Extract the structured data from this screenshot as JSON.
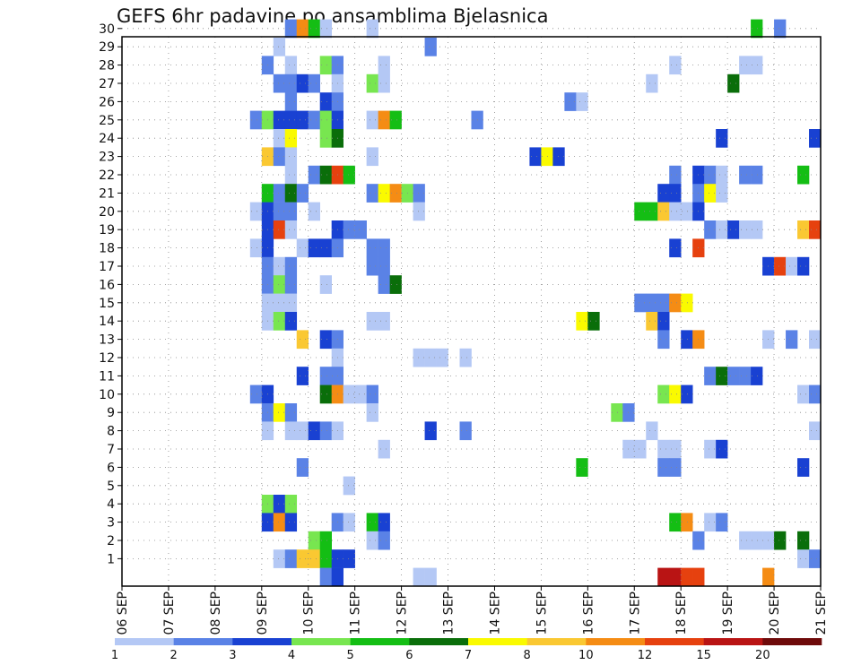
{
  "chart_data": {
    "type": "heatmap",
    "title": "GEFS 6hr padavine po ansamblima Bjelasnica",
    "x_ticks": [
      "06 SEP",
      "07 SEP",
      "08 SEP",
      "09 SEP",
      "10 SEP",
      "11 SEP",
      "12 SEP",
      "13 SEP",
      "14 SEP",
      "15 SEP",
      "16 SEP",
      "17 SEP",
      "18 SEP",
      "19 SEP",
      "20 SEP",
      "21 SEP"
    ],
    "y_ticks": [
      "1",
      "2",
      "3",
      "4",
      "5",
      "6",
      "7",
      "8",
      "9",
      "10",
      "11",
      "12",
      "13",
      "14",
      "15",
      "16",
      "17",
      "18",
      "19",
      "20",
      "21",
      "22",
      "23",
      "24",
      "25",
      "26",
      "27",
      "28",
      "29",
      "30"
    ],
    "x_unit": "6-hour step starting 06 SEP 00Z (index 0..59)",
    "y_range": [
      1,
      30
    ],
    "grid": true,
    "colorbar": {
      "levels": [
        "1",
        "2",
        "3",
        "4",
        "5",
        "6",
        "7",
        "8",
        "10",
        "12",
        "15",
        "20"
      ],
      "colors": [
        "#b4c8f5",
        "#5a82e6",
        "#1941d2",
        "#78e650",
        "#14be14",
        "#0a6e0a",
        "#fafa00",
        "#fac832",
        "#f58c14",
        "#e6410f",
        "#b91414",
        "#6e0a0a"
      ]
    },
    "cells": [
      {
        "m": 0,
        "t": 46,
        "l": 11
      },
      {
        "m": 0,
        "t": 47,
        "l": 11
      },
      {
        "m": 0,
        "t": 48,
        "l": 10
      },
      {
        "m": 0,
        "t": 49,
        "l": 10
      },
      {
        "m": 0,
        "t": 55,
        "l": 9
      },
      {
        "m": 30,
        "t": 14,
        "l": 2
      },
      {
        "m": 30,
        "t": 15,
        "l": 9
      },
      {
        "m": 30,
        "t": 16,
        "l": 5
      },
      {
        "m": 30,
        "t": 17,
        "l": 1
      },
      {
        "m": 30,
        "t": 21,
        "l": 1
      },
      {
        "m": 30,
        "t": 54,
        "l": 5
      },
      {
        "m": 30,
        "t": 56,
        "l": 2
      },
      {
        "m": 29,
        "t": 13,
        "l": 1
      },
      {
        "m": 29,
        "t": 26,
        "l": 2
      },
      {
        "m": 28,
        "t": 12,
        "l": 2
      },
      {
        "m": 28,
        "t": 14,
        "l": 1
      },
      {
        "m": 28,
        "t": 17,
        "l": 4
      },
      {
        "m": 28,
        "t": 18,
        "l": 2
      },
      {
        "m": 28,
        "t": 22,
        "l": 1
      },
      {
        "m": 28,
        "t": 47,
        "l": 1
      },
      {
        "m": 28,
        "t": 53,
        "l": 1
      },
      {
        "m": 28,
        "t": 54,
        "l": 1
      },
      {
        "m": 27,
        "t": 13,
        "l": 2
      },
      {
        "m": 27,
        "t": 14,
        "l": 2
      },
      {
        "m": 27,
        "t": 15,
        "l": 3
      },
      {
        "m": 27,
        "t": 16,
        "l": 2
      },
      {
        "m": 27,
        "t": 18,
        "l": 1
      },
      {
        "m": 27,
        "t": 21,
        "l": 4
      },
      {
        "m": 27,
        "t": 22,
        "l": 1
      },
      {
        "m": 27,
        "t": 45,
        "l": 1
      },
      {
        "m": 27,
        "t": 52,
        "l": 6
      },
      {
        "m": 26,
        "t": 14,
        "l": 2
      },
      {
        "m": 26,
        "t": 17,
        "l": 3
      },
      {
        "m": 26,
        "t": 18,
        "l": 2
      },
      {
        "m": 26,
        "t": 38,
        "l": 2
      },
      {
        "m": 26,
        "t": 39,
        "l": 1
      },
      {
        "m": 25,
        "t": 11,
        "l": 2
      },
      {
        "m": 25,
        "t": 12,
        "l": 4
      },
      {
        "m": 25,
        "t": 13,
        "l": 3
      },
      {
        "m": 25,
        "t": 14,
        "l": 3
      },
      {
        "m": 25,
        "t": 15,
        "l": 3
      },
      {
        "m": 25,
        "t": 16,
        "l": 2
      },
      {
        "m": 25,
        "t": 17,
        "l": 4
      },
      {
        "m": 25,
        "t": 18,
        "l": 3
      },
      {
        "m": 25,
        "t": 21,
        "l": 1
      },
      {
        "m": 25,
        "t": 22,
        "l": 9
      },
      {
        "m": 25,
        "t": 23,
        "l": 5
      },
      {
        "m": 25,
        "t": 30,
        "l": 2
      },
      {
        "m": 24,
        "t": 13,
        "l": 1
      },
      {
        "m": 24,
        "t": 14,
        "l": 7
      },
      {
        "m": 24,
        "t": 17,
        "l": 4
      },
      {
        "m": 24,
        "t": 18,
        "l": 6
      },
      {
        "m": 24,
        "t": 51,
        "l": 3
      },
      {
        "m": 24,
        "t": 59,
        "l": 3
      },
      {
        "m": 23,
        "t": 12,
        "l": 8
      },
      {
        "m": 23,
        "t": 13,
        "l": 2
      },
      {
        "m": 23,
        "t": 14,
        "l": 1
      },
      {
        "m": 23,
        "t": 21,
        "l": 1
      },
      {
        "m": 23,
        "t": 35,
        "l": 3
      },
      {
        "m": 23,
        "t": 36,
        "l": 7
      },
      {
        "m": 23,
        "t": 37,
        "l": 3
      },
      {
        "m": 22,
        "t": 14,
        "l": 1
      },
      {
        "m": 22,
        "t": 16,
        "l": 2
      },
      {
        "m": 22,
        "t": 17,
        "l": 6
      },
      {
        "m": 22,
        "t": 18,
        "l": 10
      },
      {
        "m": 22,
        "t": 19,
        "l": 5
      },
      {
        "m": 22,
        "t": 47,
        "l": 2
      },
      {
        "m": 22,
        "t": 49,
        "l": 3
      },
      {
        "m": 22,
        "t": 50,
        "l": 2
      },
      {
        "m": 22,
        "t": 51,
        "l": 1
      },
      {
        "m": 22,
        "t": 53,
        "l": 2
      },
      {
        "m": 22,
        "t": 54,
        "l": 2
      },
      {
        "m": 22,
        "t": 58,
        "l": 5
      },
      {
        "m": 21,
        "t": 12,
        "l": 5
      },
      {
        "m": 21,
        "t": 13,
        "l": 2
      },
      {
        "m": 21,
        "t": 14,
        "l": 6
      },
      {
        "m": 21,
        "t": 15,
        "l": 2
      },
      {
        "m": 21,
        "t": 21,
        "l": 2
      },
      {
        "m": 21,
        "t": 22,
        "l": 7
      },
      {
        "m": 21,
        "t": 23,
        "l": 9
      },
      {
        "m": 21,
        "t": 24,
        "l": 4
      },
      {
        "m": 21,
        "t": 25,
        "l": 2
      },
      {
        "m": 21,
        "t": 46,
        "l": 3
      },
      {
        "m": 21,
        "t": 47,
        "l": 3
      },
      {
        "m": 21,
        "t": 49,
        "l": 2
      },
      {
        "m": 21,
        "t": 50,
        "l": 7
      },
      {
        "m": 21,
        "t": 51,
        "l": 1
      },
      {
        "m": 20,
        "t": 11,
        "l": 1
      },
      {
        "m": 20,
        "t": 12,
        "l": 3
      },
      {
        "m": 20,
        "t": 13,
        "l": 2
      },
      {
        "m": 20,
        "t": 14,
        "l": 2
      },
      {
        "m": 20,
        "t": 16,
        "l": 1
      },
      {
        "m": 20,
        "t": 25,
        "l": 1
      },
      {
        "m": 20,
        "t": 44,
        "l": 5
      },
      {
        "m": 20,
        "t": 45,
        "l": 5
      },
      {
        "m": 20,
        "t": 46,
        "l": 8
      },
      {
        "m": 20,
        "t": 47,
        "l": 1
      },
      {
        "m": 20,
        "t": 48,
        "l": 1
      },
      {
        "m": 20,
        "t": 49,
        "l": 3
      },
      {
        "m": 19,
        "t": 12,
        "l": 3
      },
      {
        "m": 19,
        "t": 13,
        "l": 10
      },
      {
        "m": 19,
        "t": 14,
        "l": 1
      },
      {
        "m": 19,
        "t": 18,
        "l": 3
      },
      {
        "m": 19,
        "t": 19,
        "l": 2
      },
      {
        "m": 19,
        "t": 20,
        "l": 2
      },
      {
        "m": 19,
        "t": 50,
        "l": 2
      },
      {
        "m": 19,
        "t": 51,
        "l": 1
      },
      {
        "m": 19,
        "t": 52,
        "l": 3
      },
      {
        "m": 19,
        "t": 53,
        "l": 1
      },
      {
        "m": 19,
        "t": 54,
        "l": 1
      },
      {
        "m": 19,
        "t": 58,
        "l": 8
      },
      {
        "m": 19,
        "t": 59,
        "l": 10
      },
      {
        "m": 18,
        "t": 11,
        "l": 1
      },
      {
        "m": 18,
        "t": 12,
        "l": 3
      },
      {
        "m": 18,
        "t": 15,
        "l": 1
      },
      {
        "m": 18,
        "t": 16,
        "l": 3
      },
      {
        "m": 18,
        "t": 17,
        "l": 3
      },
      {
        "m": 18,
        "t": 18,
        "l": 2
      },
      {
        "m": 18,
        "t": 21,
        "l": 2
      },
      {
        "m": 18,
        "t": 22,
        "l": 2
      },
      {
        "m": 18,
        "t": 47,
        "l": 3
      },
      {
        "m": 18,
        "t": 49,
        "l": 10
      },
      {
        "m": 17,
        "t": 12,
        "l": 2
      },
      {
        "m": 17,
        "t": 13,
        "l": 1
      },
      {
        "m": 17,
        "t": 14,
        "l": 2
      },
      {
        "m": 17,
        "t": 21,
        "l": 2
      },
      {
        "m": 17,
        "t": 22,
        "l": 2
      },
      {
        "m": 17,
        "t": 55,
        "l": 3
      },
      {
        "m": 17,
        "t": 56,
        "l": 10
      },
      {
        "m": 17,
        "t": 57,
        "l": 1
      },
      {
        "m": 17,
        "t": 58,
        "l": 3
      },
      {
        "m": 16,
        "t": 12,
        "l": 2
      },
      {
        "m": 16,
        "t": 13,
        "l": 4
      },
      {
        "m": 16,
        "t": 14,
        "l": 2
      },
      {
        "m": 16,
        "t": 17,
        "l": 1
      },
      {
        "m": 16,
        "t": 22,
        "l": 2
      },
      {
        "m": 16,
        "t": 23,
        "l": 6
      },
      {
        "m": 15,
        "t": 12,
        "l": 1
      },
      {
        "m": 15,
        "t": 13,
        "l": 1
      },
      {
        "m": 15,
        "t": 14,
        "l": 1
      },
      {
        "m": 15,
        "t": 44,
        "l": 2
      },
      {
        "m": 15,
        "t": 45,
        "l": 2
      },
      {
        "m": 15,
        "t": 46,
        "l": 2
      },
      {
        "m": 15,
        "t": 47,
        "l": 9
      },
      {
        "m": 15,
        "t": 48,
        "l": 7
      },
      {
        "m": 14,
        "t": 12,
        "l": 1
      },
      {
        "m": 14,
        "t": 13,
        "l": 4
      },
      {
        "m": 14,
        "t": 14,
        "l": 3
      },
      {
        "m": 14,
        "t": 21,
        "l": 1
      },
      {
        "m": 14,
        "t": 22,
        "l": 1
      },
      {
        "m": 14,
        "t": 39,
        "l": 7
      },
      {
        "m": 14,
        "t": 40,
        "l": 6
      },
      {
        "m": 14,
        "t": 45,
        "l": 8
      },
      {
        "m": 14,
        "t": 46,
        "l": 3
      },
      {
        "m": 13,
        "t": 15,
        "l": 8
      },
      {
        "m": 13,
        "t": 17,
        "l": 3
      },
      {
        "m": 13,
        "t": 18,
        "l": 2
      },
      {
        "m": 13,
        "t": 46,
        "l": 2
      },
      {
        "m": 13,
        "t": 48,
        "l": 3
      },
      {
        "m": 13,
        "t": 49,
        "l": 9
      },
      {
        "m": 13,
        "t": 55,
        "l": 1
      },
      {
        "m": 13,
        "t": 57,
        "l": 2
      },
      {
        "m": 13,
        "t": 59,
        "l": 1
      },
      {
        "m": 12,
        "t": 18,
        "l": 1
      },
      {
        "m": 12,
        "t": 25,
        "l": 1
      },
      {
        "m": 12,
        "t": 26,
        "l": 1
      },
      {
        "m": 12,
        "t": 27,
        "l": 1
      },
      {
        "m": 12,
        "t": 29,
        "l": 1
      },
      {
        "m": 11,
        "t": 15,
        "l": 3
      },
      {
        "m": 11,
        "t": 17,
        "l": 2
      },
      {
        "m": 11,
        "t": 18,
        "l": 2
      },
      {
        "m": 11,
        "t": 50,
        "l": 2
      },
      {
        "m": 11,
        "t": 51,
        "l": 6
      },
      {
        "m": 11,
        "t": 52,
        "l": 2
      },
      {
        "m": 11,
        "t": 53,
        "l": 2
      },
      {
        "m": 11,
        "t": 54,
        "l": 3
      },
      {
        "m": 10,
        "t": 11,
        "l": 2
      },
      {
        "m": 10,
        "t": 12,
        "l": 3
      },
      {
        "m": 10,
        "t": 17,
        "l": 6
      },
      {
        "m": 10,
        "t": 18,
        "l": 9
      },
      {
        "m": 10,
        "t": 19,
        "l": 1
      },
      {
        "m": 10,
        "t": 20,
        "l": 1
      },
      {
        "m": 10,
        "t": 21,
        "l": 2
      },
      {
        "m": 10,
        "t": 46,
        "l": 4
      },
      {
        "m": 10,
        "t": 47,
        "l": 7
      },
      {
        "m": 10,
        "t": 48,
        "l": 3
      },
      {
        "m": 10,
        "t": 58,
        "l": 1
      },
      {
        "m": 10,
        "t": 59,
        "l": 2
      },
      {
        "m": 9,
        "t": 12,
        "l": 2
      },
      {
        "m": 9,
        "t": 13,
        "l": 7
      },
      {
        "m": 9,
        "t": 14,
        "l": 2
      },
      {
        "m": 9,
        "t": 21,
        "l": 1
      },
      {
        "m": 9,
        "t": 42,
        "l": 4
      },
      {
        "m": 9,
        "t": 43,
        "l": 2
      },
      {
        "m": 8,
        "t": 12,
        "l": 1
      },
      {
        "m": 8,
        "t": 14,
        "l": 1
      },
      {
        "m": 8,
        "t": 15,
        "l": 1
      },
      {
        "m": 8,
        "t": 16,
        "l": 3
      },
      {
        "m": 8,
        "t": 17,
        "l": 2
      },
      {
        "m": 8,
        "t": 18,
        "l": 1
      },
      {
        "m": 8,
        "t": 26,
        "l": 3
      },
      {
        "m": 8,
        "t": 29,
        "l": 2
      },
      {
        "m": 8,
        "t": 45,
        "l": 1
      },
      {
        "m": 8,
        "t": 59,
        "l": 1
      },
      {
        "m": 7,
        "t": 22,
        "l": 1
      },
      {
        "m": 7,
        "t": 43,
        "l": 1
      },
      {
        "m": 7,
        "t": 44,
        "l": 1
      },
      {
        "m": 7,
        "t": 46,
        "l": 1
      },
      {
        "m": 7,
        "t": 47,
        "l": 1
      },
      {
        "m": 7,
        "t": 50,
        "l": 1
      },
      {
        "m": 7,
        "t": 51,
        "l": 3
      },
      {
        "m": 6,
        "t": 15,
        "l": 2
      },
      {
        "m": 6,
        "t": 39,
        "l": 5
      },
      {
        "m": 6,
        "t": 46,
        "l": 2
      },
      {
        "m": 6,
        "t": 47,
        "l": 2
      },
      {
        "m": 6,
        "t": 58,
        "l": 3
      },
      {
        "m": 5,
        "t": 19,
        "l": 1
      },
      {
        "m": 4,
        "t": 12,
        "l": 4
      },
      {
        "m": 4,
        "t": 13,
        "l": 3
      },
      {
        "m": 4,
        "t": 14,
        "l": 4
      },
      {
        "m": 3,
        "t": 12,
        "l": 3
      },
      {
        "m": 3,
        "t": 13,
        "l": 9
      },
      {
        "m": 3,
        "t": 14,
        "l": 3
      },
      {
        "m": 3,
        "t": 18,
        "l": 2
      },
      {
        "m": 3,
        "t": 19,
        "l": 1
      },
      {
        "m": 3,
        "t": 21,
        "l": 5
      },
      {
        "m": 3,
        "t": 22,
        "l": 3
      },
      {
        "m": 3,
        "t": 47,
        "l": 5
      },
      {
        "m": 3,
        "t": 48,
        "l": 9
      },
      {
        "m": 3,
        "t": 50,
        "l": 1
      },
      {
        "m": 3,
        "t": 51,
        "l": 2
      },
      {
        "m": 2,
        "t": 16,
        "l": 4
      },
      {
        "m": 2,
        "t": 17,
        "l": 5
      },
      {
        "m": 2,
        "t": 21,
        "l": 1
      },
      {
        "m": 2,
        "t": 22,
        "l": 2
      },
      {
        "m": 2,
        "t": 49,
        "l": 2
      },
      {
        "m": 2,
        "t": 53,
        "l": 1
      },
      {
        "m": 2,
        "t": 54,
        "l": 1
      },
      {
        "m": 2,
        "t": 55,
        "l": 1
      },
      {
        "m": 2,
        "t": 56,
        "l": 6
      },
      {
        "m": 2,
        "t": 58,
        "l": 6
      },
      {
        "m": 1,
        "t": 13,
        "l": 1
      },
      {
        "m": 1,
        "t": 14,
        "l": 2
      },
      {
        "m": 1,
        "t": 15,
        "l": 8
      },
      {
        "m": 1,
        "t": 16,
        "l": 8
      },
      {
        "m": 1,
        "t": 17,
        "l": 5
      },
      {
        "m": 1,
        "t": 18,
        "l": 3
      },
      {
        "m": 1,
        "t": 19,
        "l": 3
      },
      {
        "m": 1,
        "t": 58,
        "l": 1
      },
      {
        "m": 1,
        "t": 59,
        "l": 2
      },
      {
        "m": 0,
        "t": 17,
        "l": 2
      },
      {
        "m": 0,
        "t": 18,
        "l": 3
      },
      {
        "m": 0,
        "t": 25,
        "l": 1
      },
      {
        "m": 0,
        "t": 26,
        "l": 1
      }
    ]
  }
}
